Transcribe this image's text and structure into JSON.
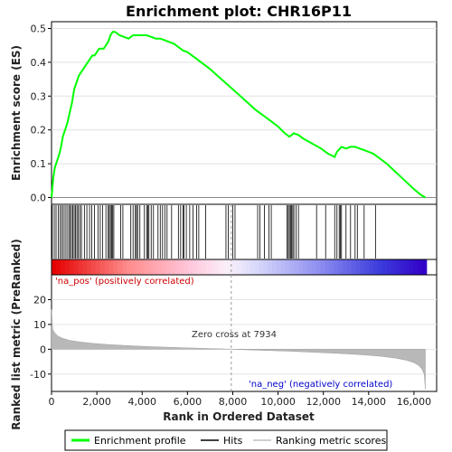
{
  "chart_data": {
    "type": "line",
    "title": "Enrichment plot: CHR16P11",
    "xlabel": "Rank in Ordered Dataset",
    "ylabel_top": "Enrichment score (ES)",
    "ylabel_bottom": "Ranked list metric (PreRanked)",
    "xlim": [
      0,
      17000
    ],
    "x_ticks": [
      0,
      2000,
      4000,
      6000,
      8000,
      10000,
      12000,
      14000,
      16000
    ],
    "x_tick_labels": [
      "0",
      "2,000",
      "4,000",
      "6,000",
      "8,000",
      "10,000",
      "12,000",
      "14,000",
      "16,000"
    ],
    "es_ylim": [
      -0.02,
      0.52
    ],
    "es_ticks": [
      0.0,
      0.1,
      0.2,
      0.3,
      0.4,
      0.5
    ],
    "es_tick_labels": [
      "0.0",
      "0.1",
      "0.2",
      "0.3",
      "0.4",
      "0.5"
    ],
    "metric_ylim": [
      -17,
      30
    ],
    "metric_ticks": [
      -10,
      0,
      10,
      20
    ],
    "metric_tick_labels": [
      "-10",
      "0",
      "10",
      "20"
    ],
    "series": [
      {
        "name": "Enrichment profile",
        "color": "#00ff00",
        "x": [
          0,
          80,
          150,
          250,
          350,
          420,
          500,
          600,
          700,
          800,
          900,
          1000,
          1100,
          1200,
          1300,
          1400,
          1500,
          1600,
          1700,
          1800,
          1900,
          2000,
          2100,
          2200,
          2300,
          2400,
          2500,
          2600,
          2700,
          2800,
          3000,
          3200,
          3400,
          3600,
          3800,
          4000,
          4200,
          4400,
          4600,
          4800,
          5000,
          5200,
          5400,
          5600,
          5800,
          6000,
          6200,
          6400,
          6600,
          6800,
          7000,
          7500,
          8000,
          8500,
          9000,
          9500,
          10000,
          10300,
          10500,
          10700,
          10900,
          11100,
          11500,
          11900,
          12200,
          12500,
          12600,
          12800,
          13000,
          13200,
          13400,
          13600,
          13800,
          14000,
          14200,
          14400,
          14800,
          15200,
          15600,
          16000,
          16300,
          16500
        ],
        "y": [
          0.0,
          0.06,
          0.09,
          0.11,
          0.13,
          0.15,
          0.18,
          0.2,
          0.22,
          0.25,
          0.28,
          0.32,
          0.34,
          0.36,
          0.37,
          0.38,
          0.39,
          0.4,
          0.41,
          0.42,
          0.42,
          0.43,
          0.44,
          0.44,
          0.44,
          0.45,
          0.46,
          0.48,
          0.49,
          0.49,
          0.48,
          0.475,
          0.47,
          0.48,
          0.48,
          0.48,
          0.48,
          0.475,
          0.47,
          0.47,
          0.465,
          0.46,
          0.455,
          0.445,
          0.435,
          0.43,
          0.42,
          0.41,
          0.4,
          0.39,
          0.38,
          0.35,
          0.32,
          0.29,
          0.26,
          0.235,
          0.21,
          0.19,
          0.18,
          0.19,
          0.185,
          0.175,
          0.16,
          0.145,
          0.13,
          0.12,
          0.135,
          0.15,
          0.145,
          0.15,
          0.15,
          0.145,
          0.14,
          0.135,
          0.13,
          0.12,
          0.1,
          0.075,
          0.05,
          0.025,
          0.008,
          0.0
        ]
      },
      {
        "name": "Hits",
        "color": "#000000",
        "positions": [
          30,
          120,
          200,
          300,
          380,
          450,
          520,
          600,
          680,
          760,
          820,
          880,
          940,
          1000,
          1060,
          1120,
          1180,
          1250,
          1320,
          1450,
          1560,
          1680,
          1780,
          1900,
          2050,
          2150,
          2250,
          2400,
          2500,
          2550,
          2600,
          2650,
          2700,
          2750,
          3050,
          3150,
          3500,
          3600,
          3700,
          3750,
          3800,
          3900,
          4100,
          4200,
          4250,
          4300,
          4400,
          4500,
          4700,
          4800,
          4900,
          5000,
          5100,
          5300,
          5600,
          5700,
          5800,
          5850,
          5950,
          6100,
          6250,
          6400,
          6500,
          6800,
          7700,
          7800,
          8000,
          8100,
          9100,
          9200,
          9400,
          9600,
          9700,
          10400,
          10450,
          10500,
          10550,
          10600,
          10650,
          10700,
          10800,
          10900,
          11700,
          12100,
          12500,
          12600,
          12700,
          12750,
          12800,
          13000,
          13200,
          13400,
          13500,
          13800,
          14300
        ]
      },
      {
        "name": "Ranking metric scores",
        "color": "#c0c0c0",
        "x": [
          0,
          50,
          150,
          300,
          500,
          800,
          1200,
          1800,
          2500,
          3500,
          4500,
          5500,
          6500,
          7500,
          7934,
          8500,
          9500,
          10500,
          11500,
          12500,
          13500,
          14500,
          15200,
          15700,
          16000,
          16200,
          16350,
          16450,
          16500
        ],
        "y": [
          16,
          8,
          6.5,
          5.2,
          4.4,
          3.6,
          3.0,
          2.4,
          1.9,
          1.4,
          1.0,
          0.7,
          0.4,
          0.15,
          0.0,
          -0.2,
          -0.5,
          -0.8,
          -1.2,
          -1.6,
          -2.1,
          -2.8,
          -3.6,
          -4.5,
          -5.4,
          -6.5,
          -8.0,
          -10.0,
          -16.0
        ]
      }
    ],
    "annotations": {
      "na_pos": "'na_pos' (positively correlated)",
      "na_neg": "'na_neg' (negatively correlated)",
      "zero_cross": "Zero cross at 7934",
      "zero_cross_x": 7934
    },
    "legend": {
      "placement": "bottom",
      "items": [
        {
          "label": "Enrichment profile",
          "color": "#00ff00"
        },
        {
          "label": "Hits",
          "color": "#000000"
        },
        {
          "label": "Ranking metric scores",
          "color": "#c0c0c0"
        }
      ]
    },
    "colors": {
      "na_pos_text": "#cc0000",
      "na_neg_text": "#0000cc",
      "zero_cross_text": "#333333"
    }
  }
}
